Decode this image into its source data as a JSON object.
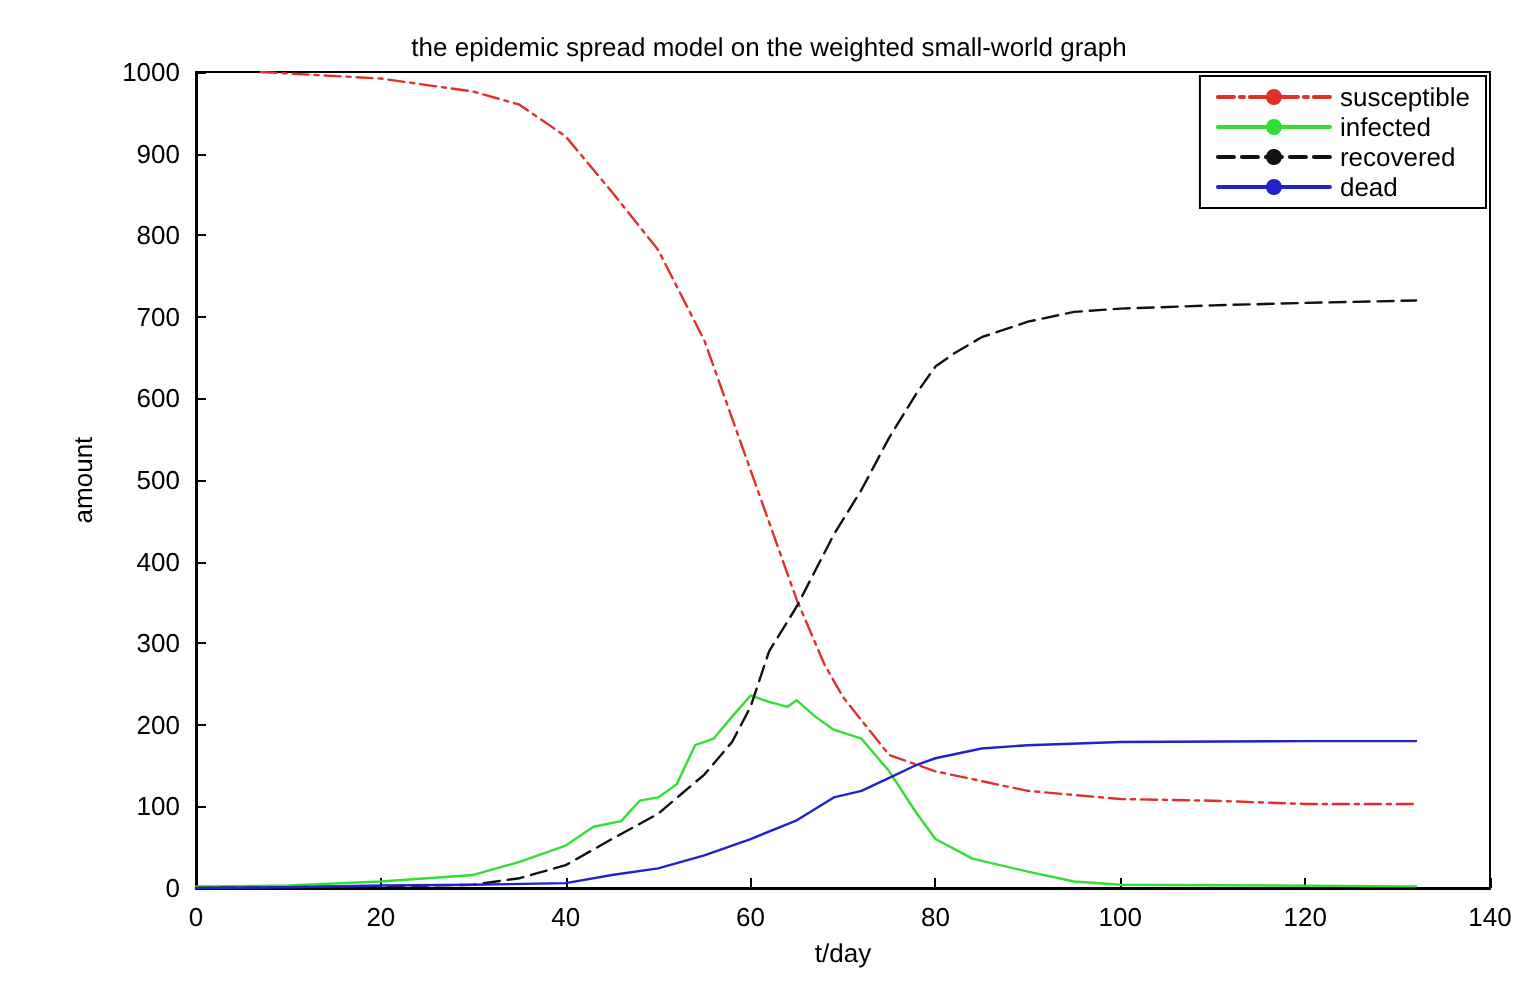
{
  "chart_data": {
    "type": "line",
    "title": "the epidemic spread model on the weighted small-world graph",
    "xlabel": "t/day",
    "ylabel": "amount",
    "xlim": [
      0,
      140
    ],
    "xticks": [
      0,
      20,
      40,
      60,
      80,
      100,
      120,
      140
    ],
    "ylim": [
      0,
      1000
    ],
    "yticks": [
      0,
      100,
      200,
      300,
      400,
      500,
      600,
      700,
      800,
      900,
      1000
    ],
    "grid": false,
    "legend": "top right",
    "marker": "none",
    "series": [
      {
        "name": "susceptible",
        "color": "#e0302a",
        "line_style": "dashdot",
        "x": [
          7,
          20,
          30,
          35,
          40,
          45,
          50,
          55,
          60,
          65,
          68,
          70,
          75,
          80,
          90,
          100,
          110,
          120,
          132
        ],
        "values": [
          1000,
          992,
          976,
          960,
          921,
          853,
          782,
          671,
          512,
          353,
          274,
          234,
          163,
          143,
          119,
          109,
          107,
          103,
          103
        ]
      },
      {
        "name": "infected",
        "color": "#33dd33",
        "line_style": "solid",
        "x": [
          0,
          10,
          20,
          30,
          35,
          40,
          43,
          46,
          48,
          50,
          52,
          54,
          56,
          58,
          60,
          62,
          64,
          65,
          67,
          69,
          72,
          75,
          78,
          80,
          84,
          90,
          95,
          100,
          132
        ],
        "values": [
          2,
          3,
          8,
          16,
          32,
          52,
          75,
          82,
          107,
          111,
          127,
          175,
          183,
          210,
          236,
          228,
          222,
          230,
          210,
          194,
          183,
          143,
          91,
          60,
          36,
          20,
          8,
          4,
          2
        ]
      },
      {
        "name": "recovered",
        "color": "#111111",
        "line_style": "dashed",
        "x": [
          0,
          20,
          30,
          35,
          40,
          45,
          50,
          55,
          58,
          60,
          62,
          65,
          69,
          72,
          75,
          78,
          80,
          82,
          85,
          90,
          95,
          100,
          110,
          120,
          132
        ],
        "values": [
          0,
          2,
          4,
          12,
          28,
          60,
          91,
          139,
          179,
          222,
          290,
          345,
          433,
          488,
          552,
          607,
          639,
          655,
          675,
          694,
          706,
          710,
          714,
          717,
          720
        ]
      },
      {
        "name": "dead",
        "color": "#2222cc",
        "line_style": "solid",
        "x": [
          0,
          10,
          20,
          30,
          40,
          45,
          50,
          55,
          60,
          65,
          69,
          72,
          75,
          78,
          80,
          85,
          90,
          100,
          120,
          132
        ],
        "values": [
          0,
          1,
          3,
          4,
          6,
          16,
          24,
          40,
          60,
          83,
          111,
          119,
          135,
          151,
          159,
          171,
          175,
          179,
          180,
          180
        ]
      }
    ]
  }
}
